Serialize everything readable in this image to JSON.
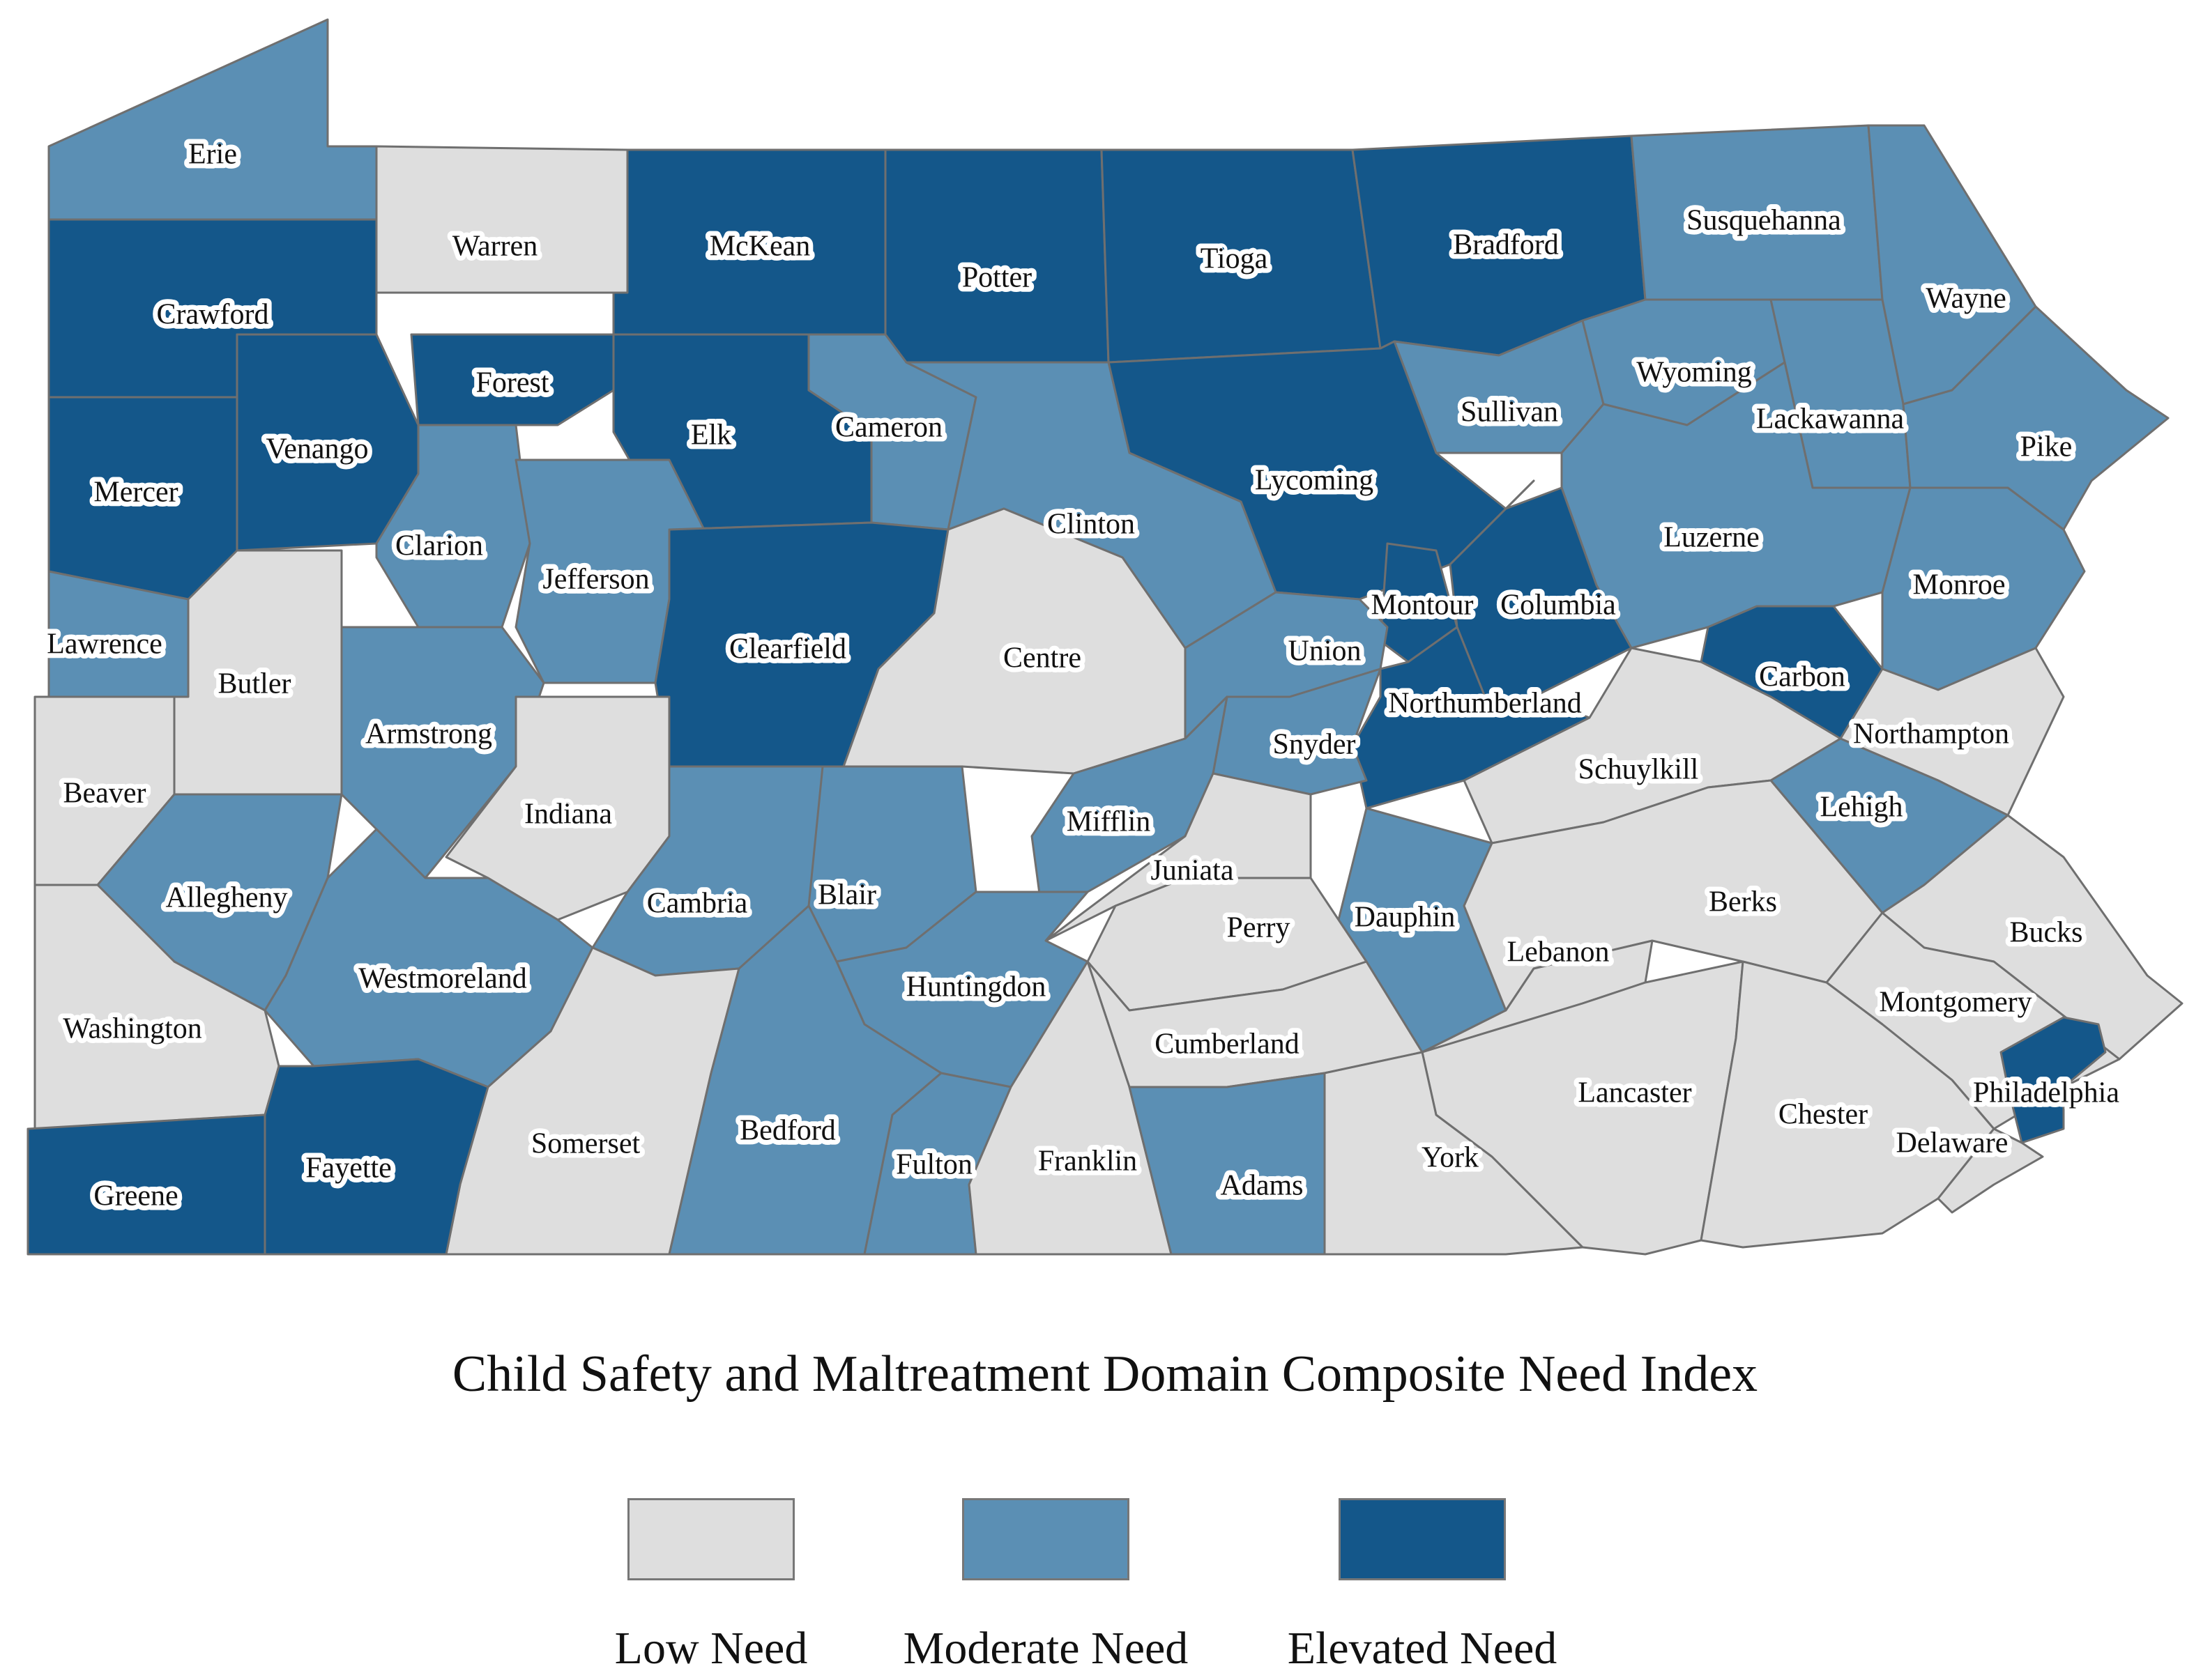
{
  "title": "Child Safety and Maltreatment Domain Composite Need Index",
  "colors": {
    "low": "#dedede",
    "moderate": "#5b8fb4",
    "elevated": "#14578a"
  },
  "legend": [
    {
      "key": "low",
      "label": "Low Need"
    },
    {
      "key": "moderate",
      "label": "Moderate Need"
    },
    {
      "key": "elevated",
      "label": "Elevated Need"
    }
  ],
  "counties": [
    {
      "name": "Erie",
      "need": "moderate"
    },
    {
      "name": "Warren",
      "need": "low"
    },
    {
      "name": "McKean",
      "need": "elevated"
    },
    {
      "name": "Potter",
      "need": "elevated"
    },
    {
      "name": "Tioga",
      "need": "elevated"
    },
    {
      "name": "Bradford",
      "need": "elevated"
    },
    {
      "name": "Susquehanna",
      "need": "moderate"
    },
    {
      "name": "Wayne",
      "need": "moderate"
    },
    {
      "name": "Crawford",
      "need": "elevated"
    },
    {
      "name": "Forest",
      "need": "elevated"
    },
    {
      "name": "Elk",
      "need": "elevated"
    },
    {
      "name": "Cameron",
      "need": "moderate"
    },
    {
      "name": "Sullivan",
      "need": "moderate"
    },
    {
      "name": "Wyoming",
      "need": "moderate"
    },
    {
      "name": "Lackawanna",
      "need": "moderate"
    },
    {
      "name": "Pike",
      "need": "moderate"
    },
    {
      "name": "Mercer",
      "need": "elevated"
    },
    {
      "name": "Venango",
      "need": "elevated"
    },
    {
      "name": "Lycoming",
      "need": "elevated"
    },
    {
      "name": "Clarion",
      "need": "moderate"
    },
    {
      "name": "Jefferson",
      "need": "moderate"
    },
    {
      "name": "Clinton",
      "need": "moderate"
    },
    {
      "name": "Luzerne",
      "need": "moderate"
    },
    {
      "name": "Monroe",
      "need": "moderate"
    },
    {
      "name": "Lawrence",
      "need": "moderate"
    },
    {
      "name": "Butler",
      "need": "low"
    },
    {
      "name": "Clearfield",
      "need": "elevated"
    },
    {
      "name": "Centre",
      "need": "low"
    },
    {
      "name": "Montour",
      "need": "elevated"
    },
    {
      "name": "Columbia",
      "need": "elevated"
    },
    {
      "name": "Union",
      "need": "moderate"
    },
    {
      "name": "Carbon",
      "need": "elevated"
    },
    {
      "name": "Armstrong",
      "need": "moderate"
    },
    {
      "name": "Northumberland",
      "need": "elevated"
    },
    {
      "name": "Snyder",
      "need": "moderate"
    },
    {
      "name": "Schuylkill",
      "need": "low"
    },
    {
      "name": "Northampton",
      "need": "low"
    },
    {
      "name": "Beaver",
      "need": "low"
    },
    {
      "name": "Indiana",
      "need": "low"
    },
    {
      "name": "Mifflin",
      "need": "moderate"
    },
    {
      "name": "Lehigh",
      "need": "moderate"
    },
    {
      "name": "Allegheny",
      "need": "moderate"
    },
    {
      "name": "Cambria",
      "need": "moderate"
    },
    {
      "name": "Blair",
      "need": "moderate"
    },
    {
      "name": "Juniata",
      "need": "low"
    },
    {
      "name": "Dauphin",
      "need": "moderate"
    },
    {
      "name": "Berks",
      "need": "low"
    },
    {
      "name": "Bucks",
      "need": "low"
    },
    {
      "name": "Perry",
      "need": "low"
    },
    {
      "name": "Lebanon",
      "need": "low"
    },
    {
      "name": "Westmoreland",
      "need": "moderate"
    },
    {
      "name": "Huntingdon",
      "need": "moderate"
    },
    {
      "name": "Montgomery",
      "need": "low"
    },
    {
      "name": "Washington",
      "need": "low"
    },
    {
      "name": "Cumberland",
      "need": "low"
    },
    {
      "name": "Lancaster",
      "need": "low"
    },
    {
      "name": "Philadelphia",
      "need": "elevated"
    },
    {
      "name": "Chester",
      "need": "low"
    },
    {
      "name": "Somerset",
      "need": "low"
    },
    {
      "name": "Bedford",
      "need": "moderate"
    },
    {
      "name": "Delaware",
      "need": "low"
    },
    {
      "name": "Fayette",
      "need": "elevated"
    },
    {
      "name": "Fulton",
      "need": "moderate"
    },
    {
      "name": "Franklin",
      "need": "low"
    },
    {
      "name": "York",
      "need": "low"
    },
    {
      "name": "Greene",
      "need": "elevated"
    },
    {
      "name": "Adams",
      "need": "moderate"
    }
  ]
}
